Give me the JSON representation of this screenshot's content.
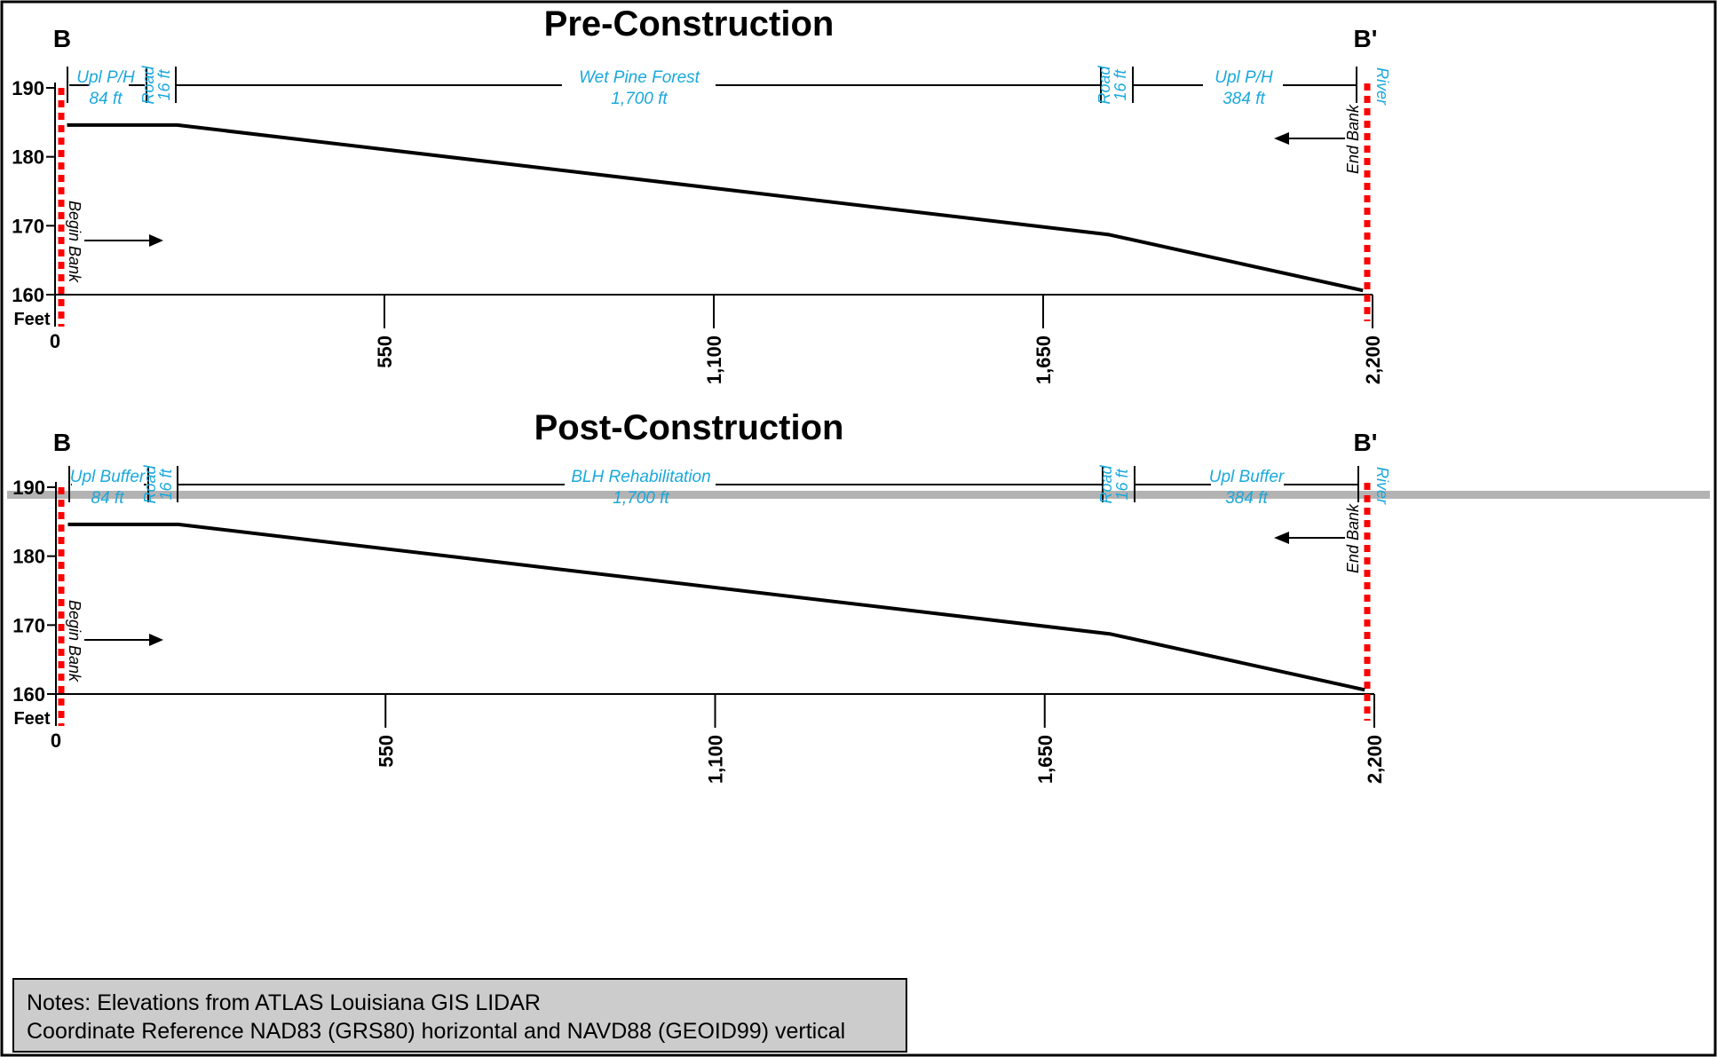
{
  "colors": {
    "zone_text": "#1ba8dc",
    "bank_line": "#ff0000",
    "profile": "#000000",
    "separator": "#b3b3b3",
    "notes_bg": "#cccccc"
  },
  "notes": {
    "line1": "Notes: Elevations from ATLAS Louisiana GIS LIDAR",
    "line2": "Coordinate Reference NAD83 (GRS80) horizontal and NAVD88 (GEOID99) vertical"
  },
  "chart_data": [
    {
      "type": "line",
      "title": "Pre-Construction",
      "start_label": "B",
      "end_label": "B'",
      "ylabel": "Feet",
      "ylim": [
        160,
        190
      ],
      "yticks": [
        "160",
        "170",
        "180",
        "190"
      ],
      "xlim": [
        0,
        2200
      ],
      "xticks": [
        "0",
        "550",
        "1,100",
        "1,650",
        "2,200"
      ],
      "series": [
        {
          "x": [
            20,
            204,
            1760,
            2184
          ],
          "y": [
            184.6,
            184.6,
            168.7,
            160.6
          ]
        }
      ],
      "bank_markers": {
        "begin": "Begin Bank",
        "end": "End Bank",
        "river": "River"
      },
      "zones": [
        {
          "name": "Upl P/H",
          "length": "84 ft"
        },
        {
          "name": "Road",
          "length": "16 ft"
        },
        {
          "name": "Wet Pine Forest",
          "length": "1,700 ft"
        },
        {
          "name": "Road",
          "length": "16 ft"
        },
        {
          "name": "Upl P/H",
          "length": "384 ft"
        }
      ]
    },
    {
      "type": "line",
      "title": "Post-Construction",
      "start_label": "B",
      "end_label": "B'",
      "ylabel": "Feet",
      "ylim": [
        160,
        190
      ],
      "yticks": [
        "160",
        "170",
        "180",
        "190"
      ],
      "xlim": [
        0,
        2200
      ],
      "xticks": [
        "0",
        "550",
        "1,100",
        "1,650",
        "2,200"
      ],
      "series": [
        {
          "x": [
            20,
            204,
            1760,
            2184
          ],
          "y": [
            184.6,
            184.6,
            168.7,
            160.6
          ]
        }
      ],
      "bank_markers": {
        "begin": "Begin Bank",
        "end": "End Bank",
        "river": "River"
      },
      "zones": [
        {
          "name": "Upl Buffer",
          "length": "84 ft"
        },
        {
          "name": "Road",
          "length": "16 ft"
        },
        {
          "name": "BLH Rehabilitation",
          "length": "1,700 ft"
        },
        {
          "name": "Road",
          "length": "16 ft"
        },
        {
          "name": "Upl Buffer",
          "length": "384 ft"
        }
      ]
    }
  ]
}
